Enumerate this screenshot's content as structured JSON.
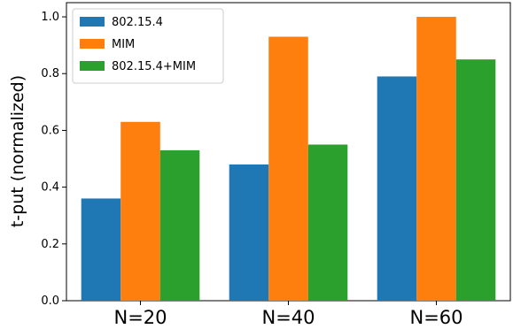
{
  "chart_data": {
    "type": "bar",
    "categories": [
      "N=20",
      "N=40",
      "N=60"
    ],
    "series": [
      {
        "name": "802.15.4",
        "color": "#1f77b4",
        "values": [
          0.36,
          0.48,
          0.79
        ]
      },
      {
        "name": "MIM",
        "color": "#ff7f0e",
        "values": [
          0.63,
          0.93,
          1.0
        ]
      },
      {
        "name": "802.15.4+MIM",
        "color": "#2ca02c",
        "values": [
          0.53,
          0.55,
          0.85
        ]
      }
    ],
    "ylabel": "t-put (normalized)",
    "xlabel": "",
    "ylim": [
      0,
      1.05
    ],
    "yticks": [
      "0.0",
      "0.2",
      "0.4",
      "0.6",
      "0.8",
      "1.0"
    ],
    "grid": false,
    "legend_position": "top-left"
  }
}
